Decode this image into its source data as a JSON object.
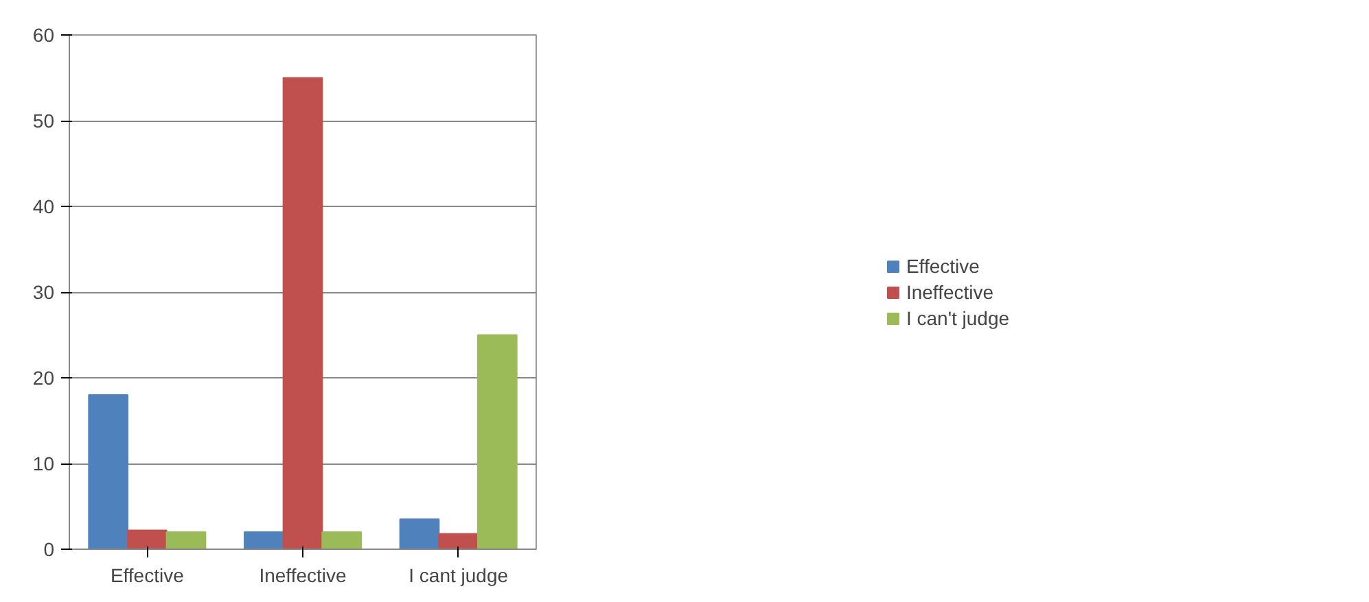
{
  "chart_data": {
    "type": "bar",
    "categories": [
      "Effective",
      "Ineffective",
      "I cant judge"
    ],
    "series": [
      {
        "name": "Effective",
        "color": "#4f81bd",
        "values": [
          18,
          2,
          3.5
        ]
      },
      {
        "name": "Ineffective",
        "color": "#c0504d",
        "values": [
          2.2,
          55,
          1.8
        ]
      },
      {
        "name": "I can't judge",
        "color": "#9bbb59",
        "values": [
          2,
          2,
          25
        ]
      }
    ],
    "ylim": [
      0,
      60
    ],
    "yticks": [
      0,
      10,
      20,
      30,
      40,
      50,
      60
    ],
    "grid": "y",
    "legend": "right"
  }
}
